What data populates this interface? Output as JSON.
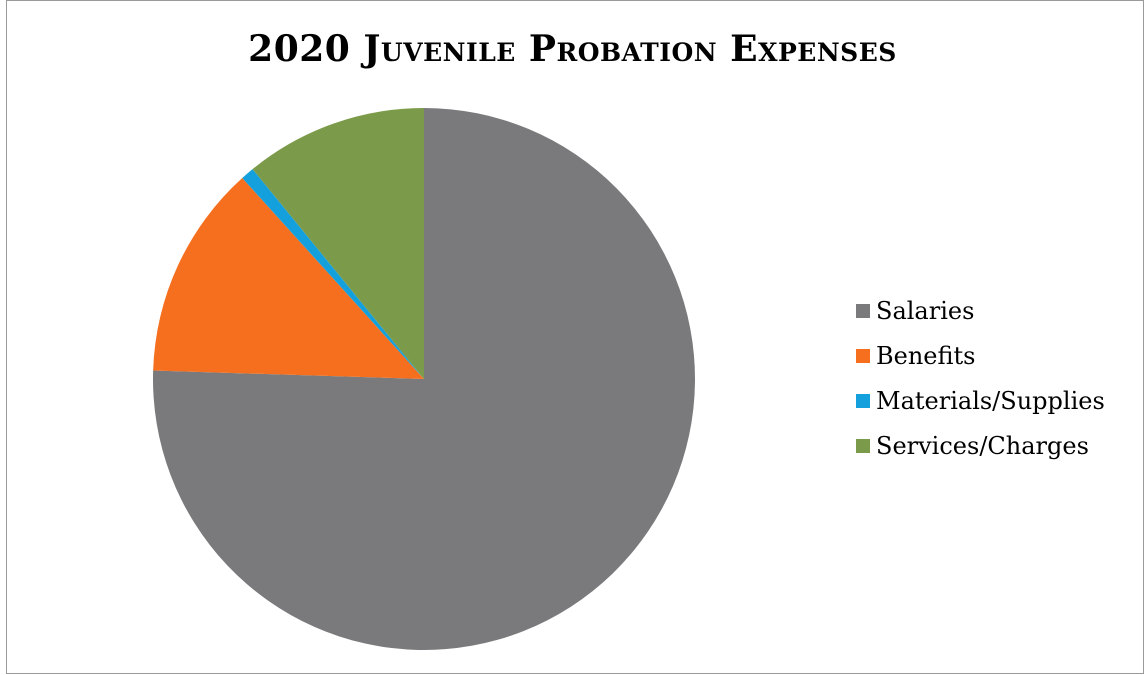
{
  "chart_data": {
    "type": "pie",
    "title": "2020 Juvenile Probation Expenses",
    "categories": [
      "Salaries",
      "Benefits",
      "Materials/Supplies",
      "Services/Charges"
    ],
    "values": [
      75.5,
      12.8,
      0.8,
      10.9
    ],
    "value_unit": "percent of total (estimated)",
    "colors": [
      "#7a7a7d",
      "#f56f1e",
      "#14a0dc",
      "#7c9b4a"
    ],
    "start_angle": "12 o'clock",
    "direction": "clockwise",
    "legend_position": "right"
  }
}
